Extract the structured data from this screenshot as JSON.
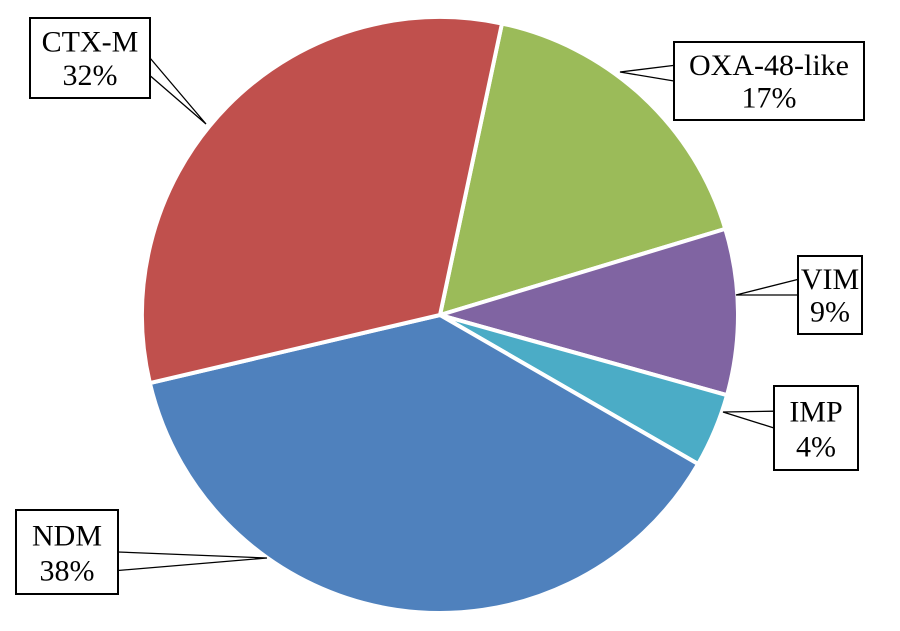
{
  "chart_data": {
    "type": "pie",
    "title": "",
    "slices": [
      {
        "label": "OXA-48-like",
        "value": 17,
        "value_label": "17%",
        "color": "#9bbb59"
      },
      {
        "label": "VIM",
        "value": 9,
        "value_label": "9%",
        "color": "#8064a2"
      },
      {
        "label": "IMP",
        "value": 4,
        "value_label": "4%",
        "color": "#4bacc6"
      },
      {
        "label": "NDM",
        "value": 38,
        "value_label": "38%",
        "color": "#4f81bd"
      },
      {
        "label": "CTX-M",
        "value": 32,
        "value_label": "32%",
        "color": "#c0504d"
      }
    ],
    "start_angle_deg": 12,
    "direction": "clockwise",
    "legend": "none",
    "labels": "callouts"
  }
}
